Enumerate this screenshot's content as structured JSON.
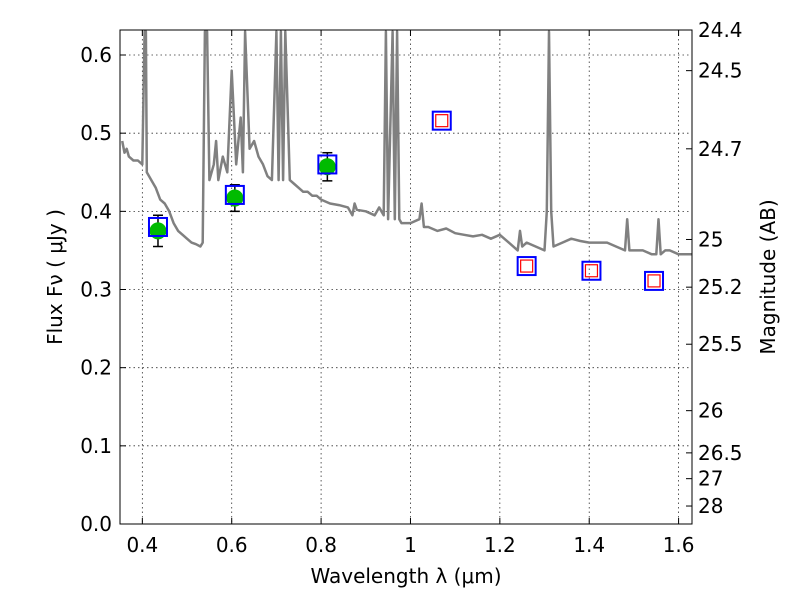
{
  "chart_data": {
    "type": "scatter",
    "xlabel": "Wavelength  λ (μm)",
    "ylabel": "Flux  Fν  ( μJy )",
    "ylabel_right": "Magnitude (AB)",
    "xlim": [
      0.35,
      1.63
    ],
    "ylim": [
      0.0,
      0.632
    ],
    "grid": true,
    "x_ticks": [
      0.4,
      0.6,
      0.8,
      1.0,
      1.2,
      1.4,
      1.6
    ],
    "x_tick_labels": [
      "0.4",
      "0.6",
      "0.8",
      "1",
      "1.2",
      "1.4",
      "1.6"
    ],
    "y_ticks": [
      0.0,
      0.1,
      0.2,
      0.3,
      0.4,
      0.5,
      0.6
    ],
    "y_tick_labels": [
      "0.0",
      "0.1",
      "0.2",
      "0.3",
      "0.4",
      "0.5",
      "0.6"
    ],
    "right_ticks": [
      {
        "label": "24.4",
        "flux": 0.632
      },
      {
        "label": "24.5",
        "flux": 0.58
      },
      {
        "label": "24.7",
        "flux": 0.48
      },
      {
        "label": "25",
        "flux": 0.364
      },
      {
        "label": "25.2",
        "flux": 0.303
      },
      {
        "label": "25.5",
        "flux": 0.23
      },
      {
        "label": "26",
        "flux": 0.145
      },
      {
        "label": "26.5",
        "flux": 0.091
      },
      {
        "label": "27",
        "flux": 0.058
      },
      {
        "label": "28",
        "flux": 0.023
      }
    ],
    "series": [
      {
        "kind": "line",
        "color": "#808080",
        "x": [
          0.355,
          0.36,
          0.365,
          0.37,
          0.38,
          0.39,
          0.4,
          0.405,
          0.408,
          0.41,
          0.42,
          0.43,
          0.44,
          0.45,
          0.46,
          0.47,
          0.48,
          0.49,
          0.5,
          0.51,
          0.52,
          0.53,
          0.535,
          0.54,
          0.545,
          0.55,
          0.555,
          0.56,
          0.565,
          0.57,
          0.58,
          0.59,
          0.6,
          0.61,
          0.615,
          0.62,
          0.625,
          0.63,
          0.64,
          0.65,
          0.66,
          0.67,
          0.68,
          0.69,
          0.7,
          0.705,
          0.71,
          0.715,
          0.72,
          0.73,
          0.74,
          0.75,
          0.76,
          0.77,
          0.78,
          0.79,
          0.8,
          0.82,
          0.84,
          0.86,
          0.87,
          0.875,
          0.88,
          0.9,
          0.92,
          0.93,
          0.94,
          0.945,
          0.95,
          0.96,
          0.965,
          0.97,
          0.975,
          0.98,
          1.0,
          1.02,
          1.025,
          1.03,
          1.04,
          1.06,
          1.08,
          1.1,
          1.12,
          1.14,
          1.16,
          1.18,
          1.2,
          1.22,
          1.24,
          1.245,
          1.25,
          1.26,
          1.28,
          1.3,
          1.305,
          1.31,
          1.315,
          1.32,
          1.34,
          1.36,
          1.38,
          1.4,
          1.42,
          1.44,
          1.46,
          1.48,
          1.485,
          1.49,
          1.5,
          1.52,
          1.54,
          1.55,
          1.555,
          1.56,
          1.57,
          1.58,
          1.6,
          1.62,
          1.63
        ],
        "y": [
          0.49,
          0.475,
          0.48,
          0.47,
          0.465,
          0.465,
          0.46,
          0.63,
          0.63,
          0.45,
          0.44,
          0.43,
          0.415,
          0.41,
          0.4,
          0.385,
          0.375,
          0.37,
          0.365,
          0.36,
          0.358,
          0.355,
          0.36,
          0.63,
          0.63,
          0.44,
          0.45,
          0.46,
          0.49,
          0.44,
          0.47,
          0.45,
          0.58,
          0.46,
          0.49,
          0.52,
          0.45,
          0.63,
          0.48,
          0.49,
          0.47,
          0.46,
          0.445,
          0.44,
          0.63,
          0.44,
          0.63,
          0.44,
          0.63,
          0.44,
          0.435,
          0.43,
          0.425,
          0.425,
          0.42,
          0.42,
          0.415,
          0.41,
          0.408,
          0.405,
          0.395,
          0.41,
          0.402,
          0.4,
          0.395,
          0.405,
          0.395,
          0.63,
          0.39,
          0.63,
          0.39,
          0.63,
          0.39,
          0.385,
          0.385,
          0.39,
          0.41,
          0.38,
          0.38,
          0.375,
          0.378,
          0.372,
          0.37,
          0.368,
          0.37,
          0.365,
          0.37,
          0.36,
          0.35,
          0.375,
          0.355,
          0.36,
          0.355,
          0.35,
          0.4,
          0.63,
          0.4,
          0.355,
          0.36,
          0.365,
          0.362,
          0.36,
          0.36,
          0.36,
          0.355,
          0.35,
          0.39,
          0.35,
          0.35,
          0.35,
          0.345,
          0.345,
          0.39,
          0.345,
          0.35,
          0.35,
          0.345,
          0.345,
          0.345
        ]
      },
      {
        "kind": "points-with-errors",
        "marker": "green-circle",
        "color": "#00bb00",
        "points": [
          {
            "x": 0.435,
            "y": 0.375,
            "err": 0.02
          },
          {
            "x": 0.607,
            "y": 0.417,
            "err": 0.017
          },
          {
            "x": 0.814,
            "y": 0.457,
            "err": 0.018
          }
        ]
      },
      {
        "kind": "points",
        "marker": "blue-square",
        "color": "#0000ff",
        "points": [
          {
            "x": 0.435,
            "y": 0.38
          },
          {
            "x": 0.607,
            "y": 0.421
          },
          {
            "x": 0.814,
            "y": 0.46
          },
          {
            "x": 1.07,
            "y": 0.516
          },
          {
            "x": 1.26,
            "y": 0.33
          },
          {
            "x": 1.405,
            "y": 0.324
          },
          {
            "x": 1.545,
            "y": 0.311
          }
        ]
      },
      {
        "kind": "points",
        "marker": "red-square",
        "color": "#ff0000",
        "points": [
          {
            "x": 1.07,
            "y": 0.516
          },
          {
            "x": 1.26,
            "y": 0.33
          },
          {
            "x": 1.405,
            "y": 0.324
          },
          {
            "x": 1.545,
            "y": 0.311
          }
        ]
      }
    ]
  }
}
